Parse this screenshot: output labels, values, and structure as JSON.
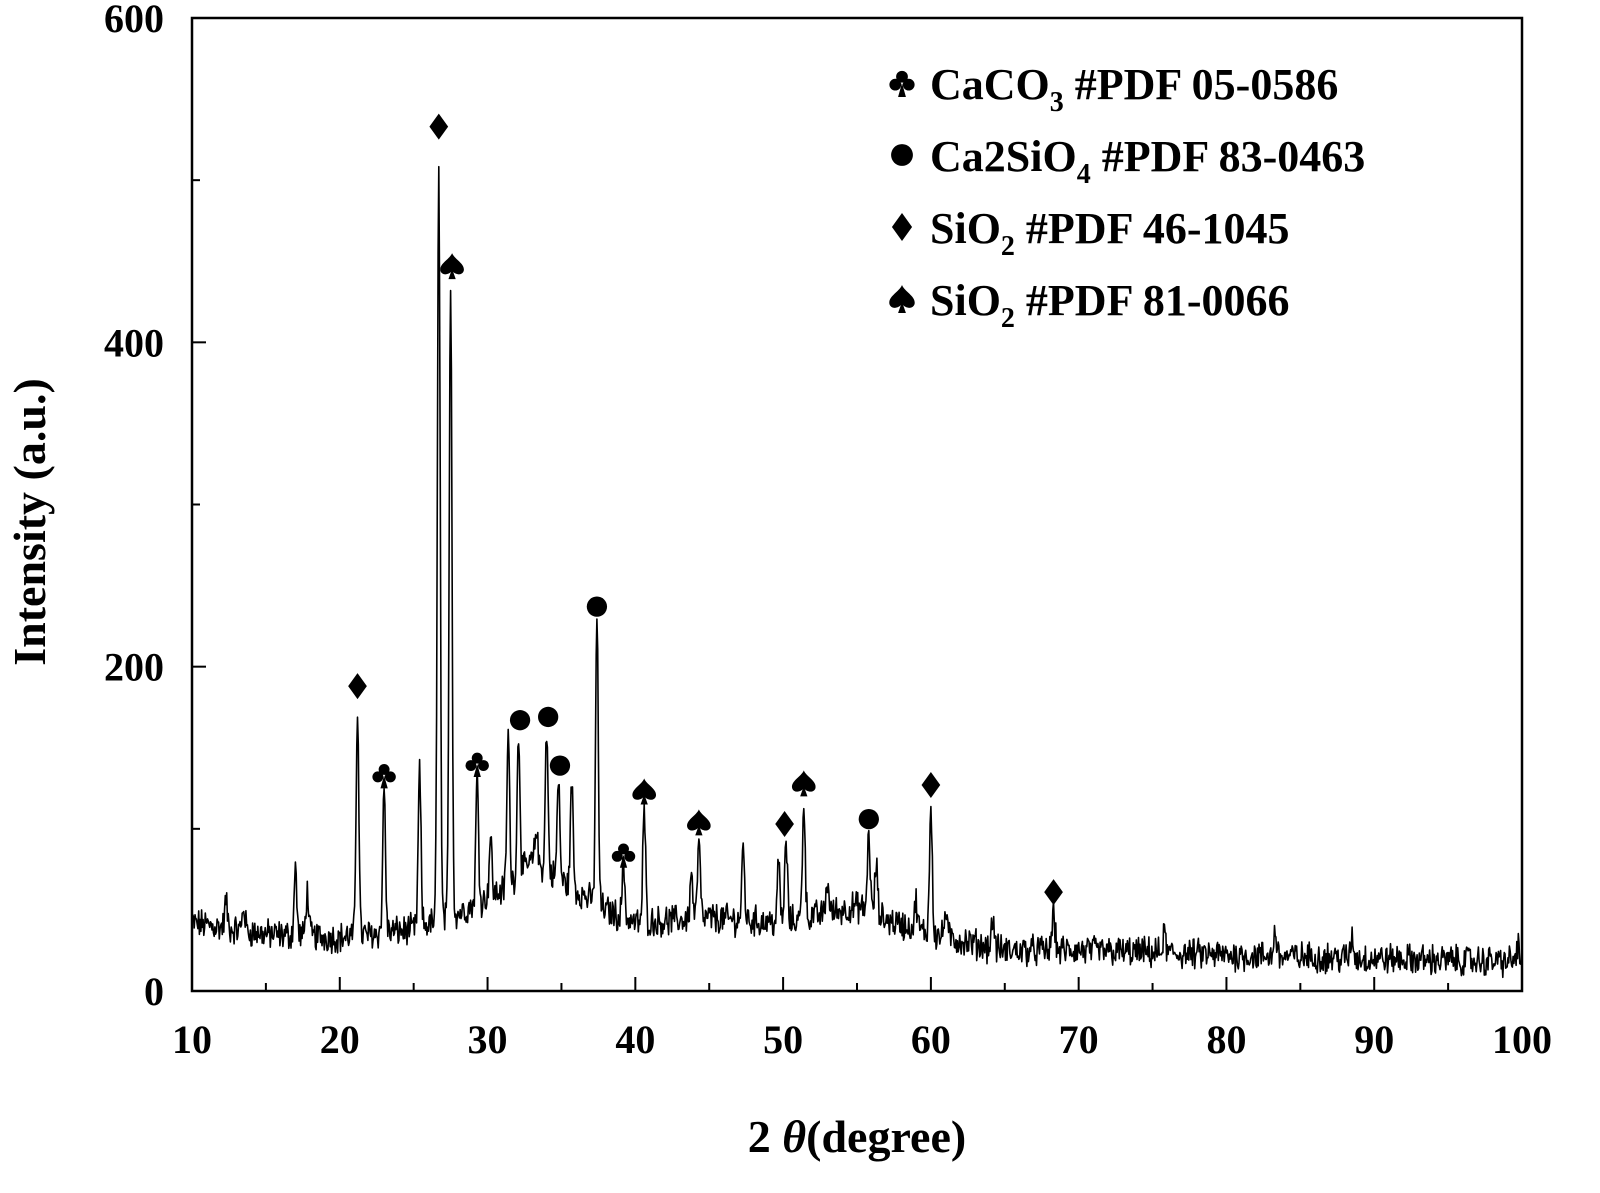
{
  "chart_data": {
    "type": "line",
    "title": "",
    "xlabel_prefix": "2 ",
    "xlabel_theta": "θ",
    "xlabel_suffix": "(degree)",
    "ylabel": "Intensity (a.u.)",
    "xlim": [
      10,
      100
    ],
    "ylim": [
      0,
      600
    ],
    "x_ticks": [
      10,
      20,
      30,
      40,
      50,
      60,
      70,
      80,
      90,
      100
    ],
    "y_ticks": [
      0,
      200,
      400,
      600
    ],
    "grid": false,
    "legend_position": "top-right",
    "baseline": [
      [
        10,
        42
      ],
      [
        15,
        35
      ],
      [
        20,
        33
      ],
      [
        25,
        38
      ],
      [
        28,
        48
      ],
      [
        31,
        62
      ],
      [
        33,
        80
      ],
      [
        35,
        68
      ],
      [
        38,
        50
      ],
      [
        40,
        42
      ],
      [
        45,
        45
      ],
      [
        50,
        42
      ],
      [
        55,
        52
      ],
      [
        57,
        44
      ],
      [
        60,
        35
      ],
      [
        65,
        25
      ],
      [
        70,
        25
      ],
      [
        80,
        22
      ],
      [
        90,
        20
      ],
      [
        100,
        18
      ]
    ],
    "peaks": [
      {
        "x": 12.3,
        "y": 55
      },
      {
        "x": 13.5,
        "y": 52
      },
      {
        "x": 17.0,
        "y": 75
      },
      {
        "x": 17.8,
        "y": 62
      },
      {
        "x": 21.2,
        "y": 175
      },
      {
        "x": 23.0,
        "y": 125
      },
      {
        "x": 25.4,
        "y": 135
      },
      {
        "x": 26.7,
        "y": 515
      },
      {
        "x": 27.5,
        "y": 440
      },
      {
        "x": 29.3,
        "y": 132
      },
      {
        "x": 30.2,
        "y": 95
      },
      {
        "x": 31.4,
        "y": 158
      },
      {
        "x": 32.1,
        "y": 160
      },
      {
        "x": 33.3,
        "y": 100
      },
      {
        "x": 34.0,
        "y": 160
      },
      {
        "x": 34.8,
        "y": 130
      },
      {
        "x": 35.7,
        "y": 128
      },
      {
        "x": 37.4,
        "y": 228
      },
      {
        "x": 39.2,
        "y": 78
      },
      {
        "x": 40.6,
        "y": 112
      },
      {
        "x": 43.8,
        "y": 72
      },
      {
        "x": 44.3,
        "y": 92
      },
      {
        "x": 47.3,
        "y": 88
      },
      {
        "x": 49.7,
        "y": 78
      },
      {
        "x": 50.2,
        "y": 92
      },
      {
        "x": 51.4,
        "y": 118
      },
      {
        "x": 53.0,
        "y": 68
      },
      {
        "x": 55.8,
        "y": 98
      },
      {
        "x": 56.3,
        "y": 78
      },
      {
        "x": 59.0,
        "y": 55
      },
      {
        "x": 60.0,
        "y": 115
      },
      {
        "x": 61.0,
        "y": 50
      },
      {
        "x": 64.2,
        "y": 45
      },
      {
        "x": 68.3,
        "y": 50
      },
      {
        "x": 75.8,
        "y": 35
      },
      {
        "x": 83.3,
        "y": 38
      },
      {
        "x": 88.5,
        "y": 33
      },
      {
        "x": 99.7,
        "y": 28
      }
    ],
    "markers": [
      {
        "x": 21.2,
        "y": 188,
        "phase": "SiO2 46-1045",
        "symbol": "diamond"
      },
      {
        "x": 23.0,
        "y": 133,
        "phase": "CaCO3",
        "symbol": "club"
      },
      {
        "x": 26.7,
        "y": 533,
        "phase": "SiO2 46-1045",
        "symbol": "diamond"
      },
      {
        "x": 27.6,
        "y": 447,
        "phase": "SiO2 81-0066",
        "symbol": "spade"
      },
      {
        "x": 29.3,
        "y": 140,
        "phase": "CaCO3",
        "symbol": "club"
      },
      {
        "x": 32.2,
        "y": 167,
        "phase": "Ca2SiO4",
        "symbol": "circle"
      },
      {
        "x": 34.1,
        "y": 169,
        "phase": "Ca2SiO4",
        "symbol": "circle"
      },
      {
        "x": 34.9,
        "y": 139,
        "phase": "Ca2SiO4",
        "symbol": "circle"
      },
      {
        "x": 37.4,
        "y": 237,
        "phase": "Ca2SiO4",
        "symbol": "circle"
      },
      {
        "x": 39.2,
        "y": 84,
        "phase": "CaCO3",
        "symbol": "club"
      },
      {
        "x": 40.6,
        "y": 123,
        "phase": "SiO2 81-0066",
        "symbol": "spade"
      },
      {
        "x": 44.3,
        "y": 104,
        "phase": "SiO2 81-0066",
        "symbol": "spade"
      },
      {
        "x": 50.1,
        "y": 103,
        "phase": "SiO2 46-1045",
        "symbol": "diamond"
      },
      {
        "x": 51.4,
        "y": 128,
        "phase": "SiO2 81-0066",
        "symbol": "spade"
      },
      {
        "x": 55.8,
        "y": 106,
        "phase": "Ca2SiO4",
        "symbol": "circle"
      },
      {
        "x": 60.0,
        "y": 127,
        "phase": "SiO2 46-1045",
        "symbol": "diamond"
      },
      {
        "x": 68.3,
        "y": 61,
        "phase": "SiO2 46-1045",
        "symbol": "diamond"
      }
    ],
    "legend": [
      {
        "symbol": "club",
        "base": "CaCO",
        "sub": "3",
        "rest": " #PDF 05-0586"
      },
      {
        "symbol": "circle",
        "base": "Ca2SiO",
        "sub": "4",
        "rest": " #PDF 83-0463"
      },
      {
        "symbol": "diamond",
        "base": "SiO",
        "sub": "2",
        "rest": " #PDF 46-1045"
      },
      {
        "symbol": "spade",
        "base": "SiO",
        "sub": "2",
        "rest": " #PDF 81-0066"
      }
    ],
    "colors": {
      "line": "#000000",
      "marker": "#000000",
      "background": "#ffffff"
    }
  }
}
